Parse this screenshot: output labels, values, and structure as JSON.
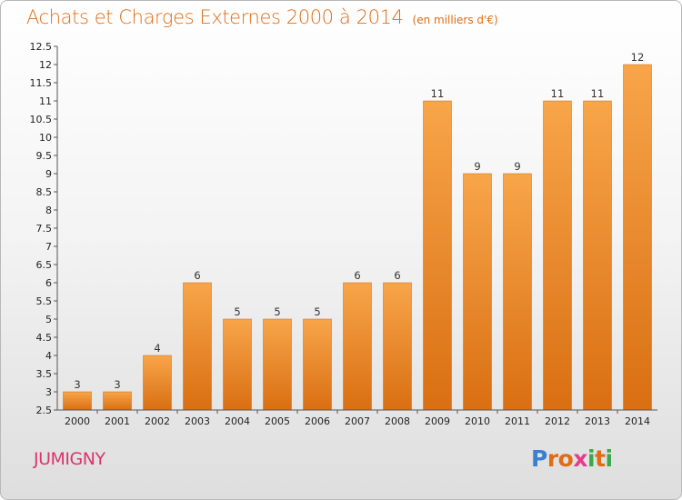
{
  "title": "Achats et Charges Externes 2000 à 2014",
  "unit_note": "(en milliers d'€)",
  "commune": "JUMIGNY",
  "brand": {
    "letters": [
      "P",
      "r",
      "o",
      "x",
      "i",
      "t",
      "i"
    ],
    "colors": [
      "#3a7fd1",
      "#e06c16",
      "#e06c16",
      "#e63a8c",
      "#3aa84a",
      "#e06c16",
      "#3aa84a"
    ]
  },
  "colors": {
    "title": "#e06c16",
    "commune": "#d8366e",
    "bar": "#f0922e"
  },
  "chart_data": {
    "type": "bar",
    "title": "Achats et Charges Externes 2000 à 2014",
    "subtitle": "(en milliers d'€)",
    "categories": [
      "2000",
      "2001",
      "2002",
      "2003",
      "2004",
      "2005",
      "2006",
      "2007",
      "2008",
      "2009",
      "2010",
      "2011",
      "2012",
      "2013",
      "2014"
    ],
    "values": [
      3,
      3,
      4,
      6,
      5,
      5,
      5,
      6,
      6,
      11,
      9,
      9,
      11,
      11,
      12
    ],
    "data_labels": [
      "3",
      "3",
      "4",
      "6",
      "5",
      "5",
      "5",
      "6",
      "6",
      "11",
      "9",
      "9",
      "11",
      "11",
      "12"
    ],
    "y_ticks": [
      "2.5",
      "3",
      "3.5",
      "4",
      "4.5",
      "5",
      "5.5",
      "6",
      "6.5",
      "7",
      "7.5",
      "8",
      "8.5",
      "9",
      "9.5",
      "10",
      "10.5",
      "11",
      "11.5",
      "12",
      "12.5"
    ],
    "ylim": [
      2.5,
      12.5
    ],
    "grid": false,
    "legend": "none"
  }
}
